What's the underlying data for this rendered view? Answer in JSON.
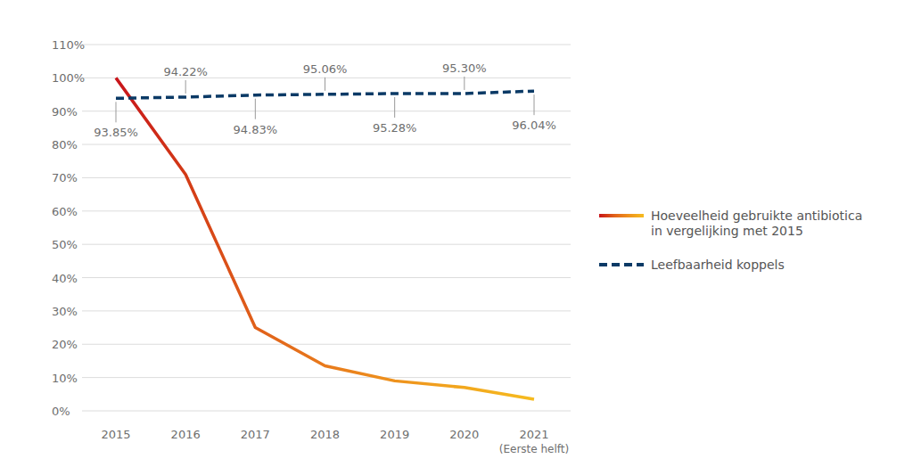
{
  "chart_data": {
    "type": "line",
    "categories": [
      "2015",
      "2016",
      "2017",
      "2018",
      "2019",
      "2020",
      "2021\n(Eerste helft)"
    ],
    "series": [
      {
        "name": "Hoeveelheid gebruikte antibiotica\nin vergelijking met 2015",
        "values": [
          100,
          71,
          25,
          13.5,
          9,
          7,
          3.5
        ],
        "colors": [
          "#c8151b",
          "#d33a16",
          "#e0601a",
          "#e87a1c",
          "#ee921d",
          "#f2a81e",
          "#f6bb1f"
        ],
        "line_style": "solid"
      },
      {
        "name": "Leefbaarheid koppels",
        "values": [
          93.85,
          94.22,
          94.83,
          95.06,
          95.28,
          95.3,
          96.04
        ],
        "value_labels": [
          "93.85%",
          "94.22%",
          "94.83%",
          "95.06%",
          "95.28%",
          "95.30%",
          "96.04%"
        ],
        "data_labels": true,
        "color": "#0b3a66",
        "line_style": "dashed"
      }
    ],
    "ylim": [
      0,
      110
    ],
    "yticks": [
      {
        "value": 0,
        "label": "0%"
      },
      {
        "value": 10,
        "label": "10%"
      },
      {
        "value": 20,
        "label": "20%"
      },
      {
        "value": 30,
        "label": "30%"
      },
      {
        "value": 40,
        "label": "40%"
      },
      {
        "value": 50,
        "label": "50%"
      },
      {
        "value": 60,
        "label": "60%"
      },
      {
        "value": 70,
        "label": "70%"
      },
      {
        "value": 80,
        "label": "80%"
      },
      {
        "value": 90,
        "label": "90%"
      },
      {
        "value": 100,
        "label": "100%"
      },
      {
        "value": 110,
        "label": "110%"
      }
    ],
    "grid": true,
    "legend": "right"
  }
}
